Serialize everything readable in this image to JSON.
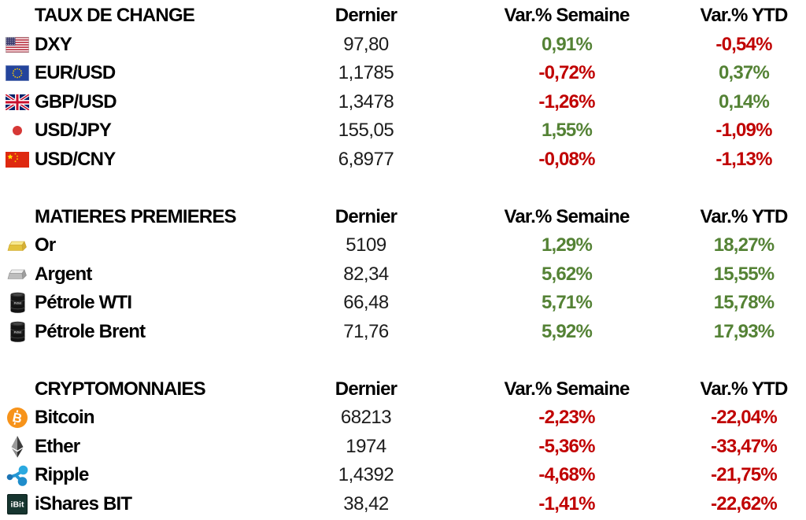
{
  "colors": {
    "positive": "#548235",
    "negative": "#C00000",
    "header_text": "#000000",
    "value_text": "#1c1c1c",
    "background": "#ffffff"
  },
  "chart_data": {
    "type": "table",
    "columns": [
      "Dernier",
      "Var.% Semaine",
      "Var.% YTD"
    ],
    "sections": [
      {
        "title": "TAUX DE CHANGE",
        "rows": [
          {
            "icon": "us-flag",
            "label": "DXY",
            "last": "97,80",
            "week": "0,91%",
            "ytd": "-0,54%"
          },
          {
            "icon": "eu-flag",
            "label": "EUR/USD",
            "last": "1,1785",
            "week": "-0,72%",
            "ytd": "0,37%"
          },
          {
            "icon": "uk-flag",
            "label": "GBP/USD",
            "last": "1,3478",
            "week": "-1,26%",
            "ytd": "0,14%"
          },
          {
            "icon": "japan-flag",
            "label": "USD/JPY",
            "last": "155,05",
            "week": "1,55%",
            "ytd": "-1,09%"
          },
          {
            "icon": "china-flag",
            "label": "USD/CNY",
            "last": "6,8977",
            "week": "-0,08%",
            "ytd": "-1,13%"
          }
        ]
      },
      {
        "title": "MATIERES PREMIERES",
        "rows": [
          {
            "icon": "gold-bar",
            "label": "Or",
            "last": "5109",
            "week": "1,29%",
            "ytd": "18,27%"
          },
          {
            "icon": "silver-bar",
            "label": "Argent",
            "last": "82,34",
            "week": "5,62%",
            "ytd": "15,55%"
          },
          {
            "icon": "oil-barrel",
            "label": "Pétrole WTI",
            "last": "66,48",
            "week": "5,71%",
            "ytd": "15,78%"
          },
          {
            "icon": "oil-barrel",
            "label": "Pétrole Brent",
            "last": "71,76",
            "week": "5,92%",
            "ytd": "17,93%"
          }
        ]
      },
      {
        "title": "CRYPTOMONNAIES",
        "rows": [
          {
            "icon": "bitcoin",
            "label": "Bitcoin",
            "last": "68213",
            "week": "-2,23%",
            "ytd": "-22,04%"
          },
          {
            "icon": "ethereum",
            "label": "Ether",
            "last": "1974",
            "week": "-5,36%",
            "ytd": "-33,47%"
          },
          {
            "icon": "ripple",
            "label": "Ripple",
            "last": "1,4392",
            "week": "-4,68%",
            "ytd": "-21,75%"
          },
          {
            "icon": "ibit",
            "label": "iShares BIT",
            "last": "38,42",
            "week": "-1,41%",
            "ytd": "-22,62%"
          }
        ]
      }
    ]
  }
}
